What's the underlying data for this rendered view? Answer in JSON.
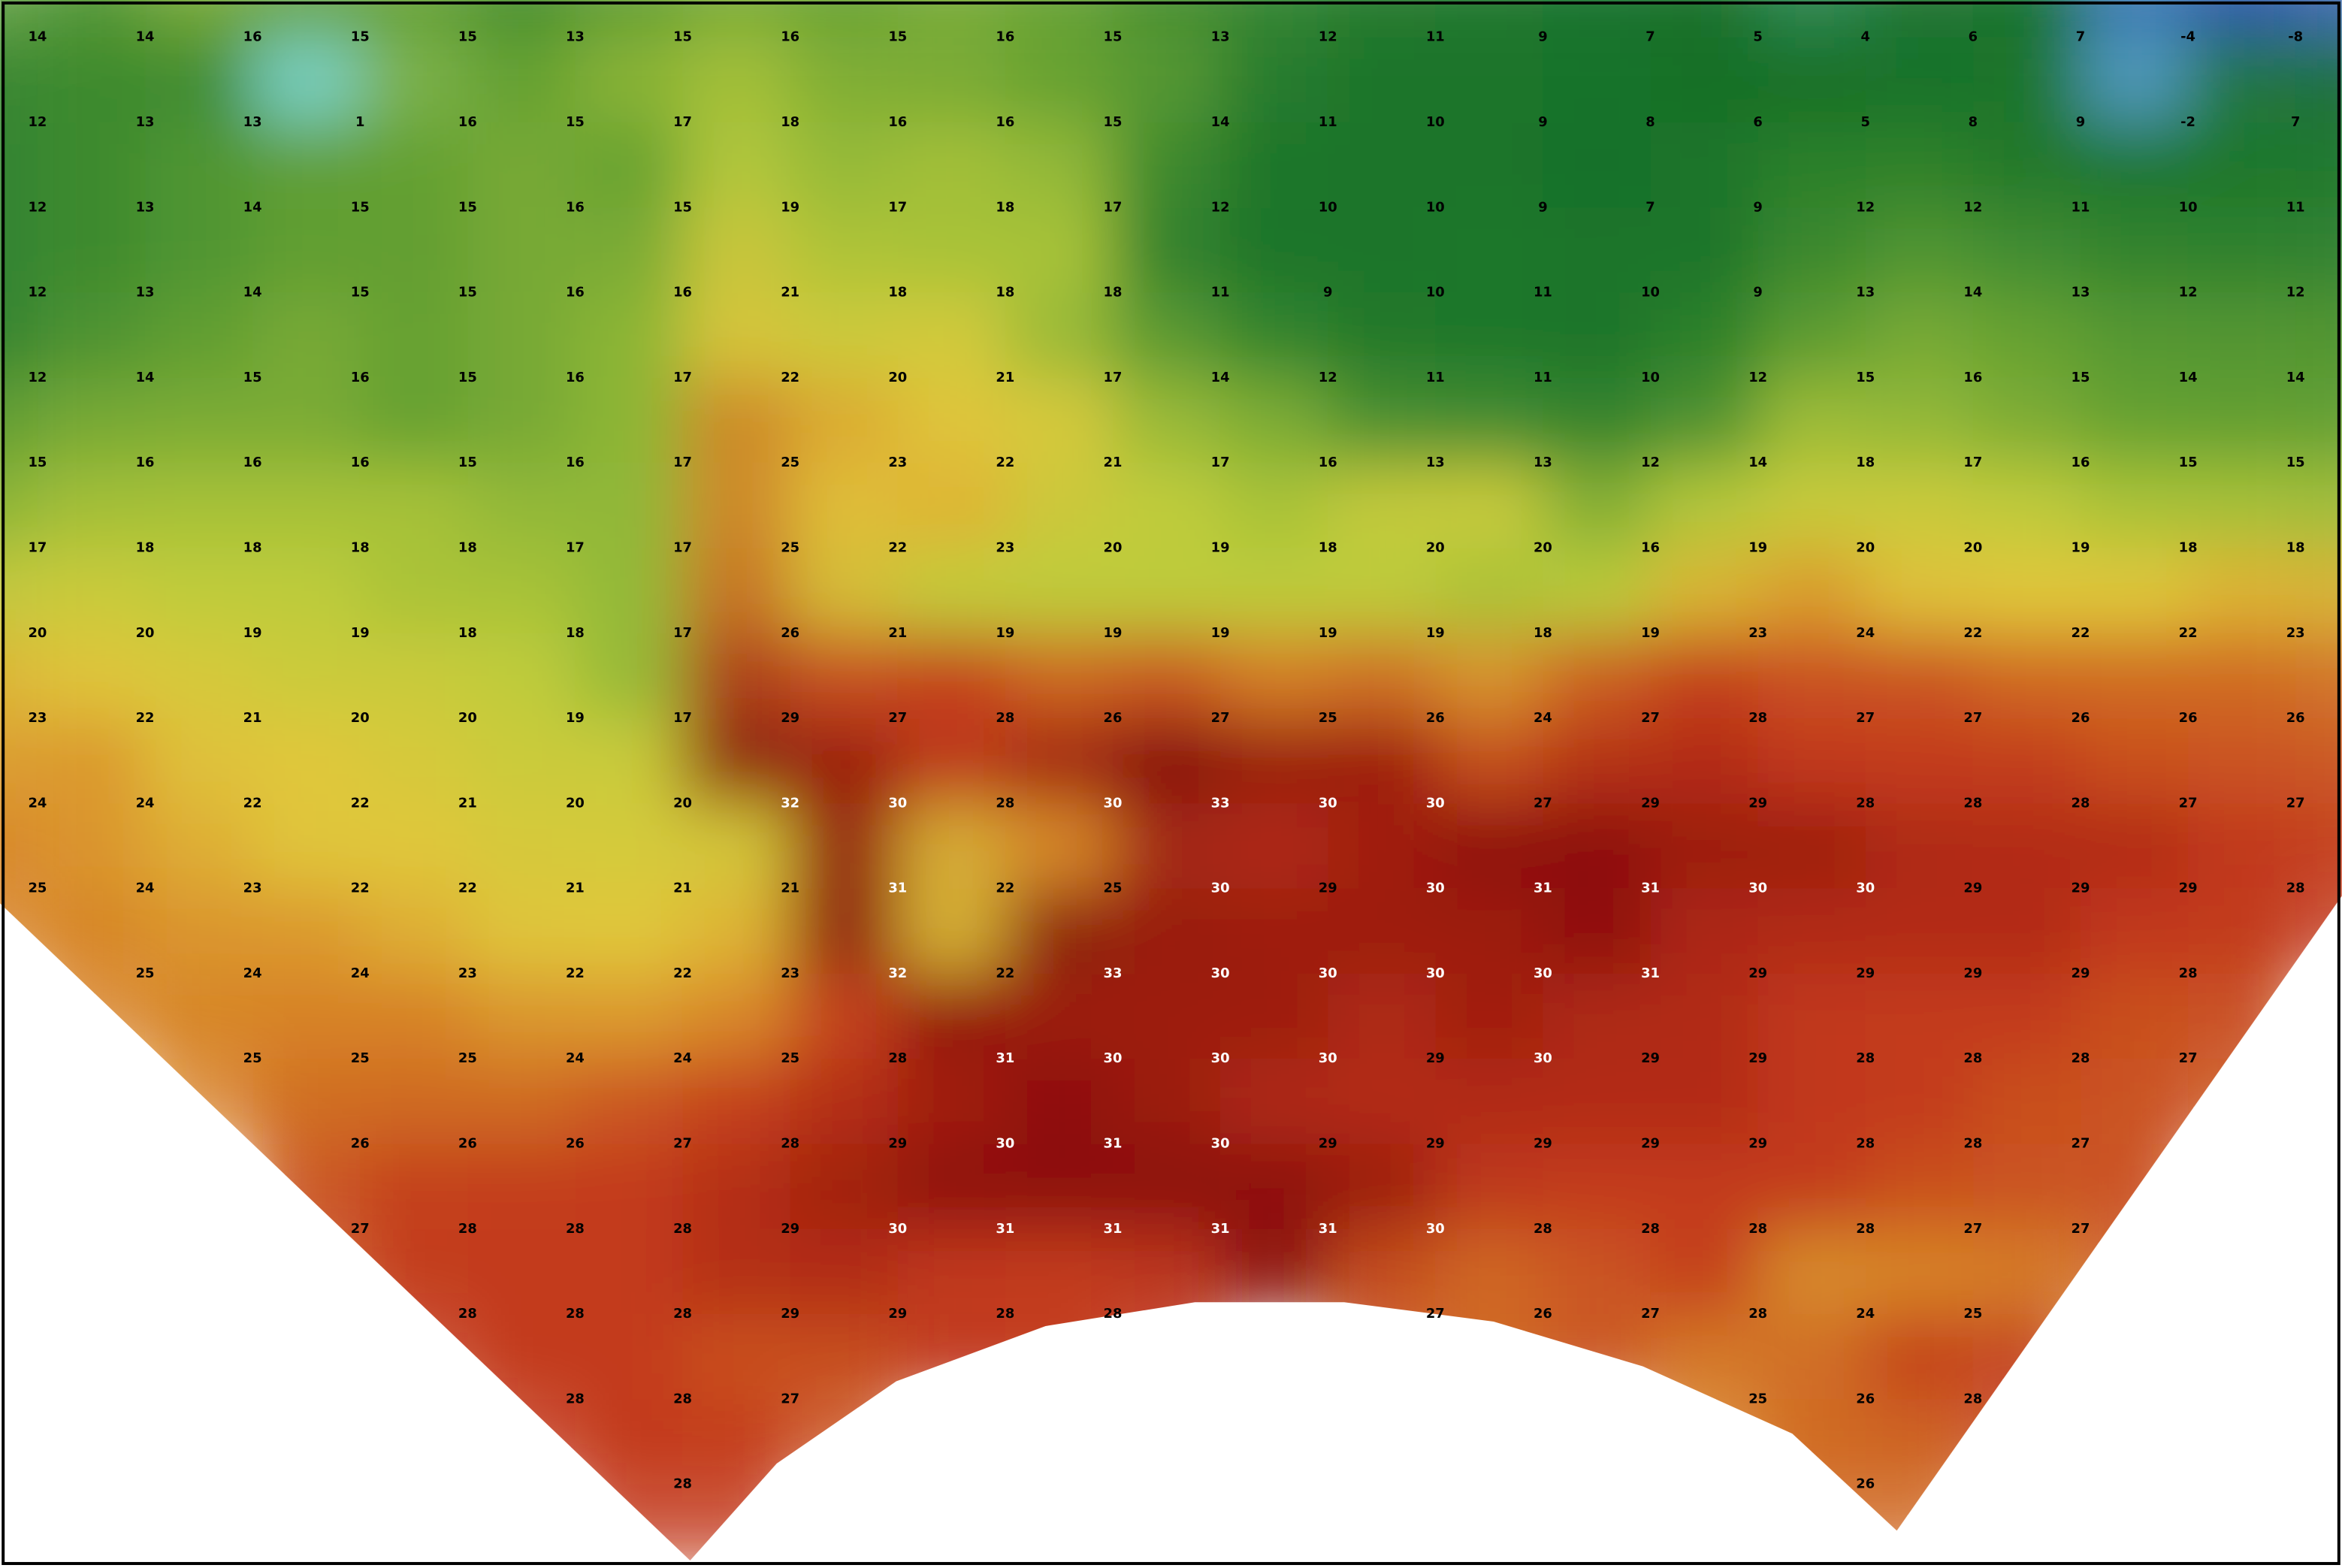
{
  "map": {
    "grid": [
      [
        14,
        14,
        16,
        15,
        15,
        13,
        15,
        16,
        15,
        16,
        15,
        13,
        12,
        11,
        9,
        7,
        5,
        4,
        6,
        7,
        -4,
        -8
      ],
      [
        12,
        13,
        13,
        1,
        16,
        15,
        17,
        18,
        16,
        16,
        15,
        14,
        11,
        10,
        9,
        8,
        6,
        5,
        8,
        9,
        -2,
        7
      ],
      [
        12,
        13,
        14,
        15,
        15,
        16,
        15,
        19,
        17,
        18,
        17,
        12,
        10,
        10,
        9,
        7,
        9,
        12,
        12,
        11,
        10,
        11
      ],
      [
        12,
        13,
        14,
        15,
        15,
        16,
        16,
        21,
        18,
        18,
        18,
        11,
        9,
        10,
        11,
        10,
        9,
        13,
        14,
        13,
        12,
        12
      ],
      [
        12,
        14,
        15,
        16,
        15,
        16,
        17,
        22,
        20,
        21,
        17,
        14,
        12,
        11,
        11,
        10,
        12,
        15,
        16,
        15,
        14,
        14
      ],
      [
        15,
        16,
        16,
        16,
        15,
        16,
        17,
        25,
        23,
        22,
        21,
        17,
        16,
        13,
        13,
        12,
        14,
        18,
        17,
        16,
        15,
        15
      ],
      [
        17,
        18,
        18,
        18,
        18,
        17,
        17,
        25,
        22,
        23,
        20,
        19,
        18,
        20,
        20,
        16,
        19,
        20,
        20,
        19,
        18,
        18
      ],
      [
        20,
        20,
        19,
        19,
        18,
        18,
        17,
        26,
        21,
        19,
        19,
        19,
        19,
        19,
        18,
        19,
        23,
        24,
        22,
        22,
        22,
        23
      ],
      [
        23,
        22,
        21,
        20,
        20,
        19,
        17,
        29,
        27,
        28,
        26,
        27,
        25,
        26,
        24,
        27,
        28,
        27,
        27,
        26,
        26,
        26
      ],
      [
        24,
        24,
        22,
        22,
        21,
        20,
        20,
        32,
        30,
        28,
        30,
        33,
        30,
        30,
        27,
        29,
        29,
        28,
        28,
        28,
        27,
        27
      ],
      [
        25,
        24,
        23,
        22,
        22,
        21,
        21,
        21,
        31,
        22,
        25,
        30,
        29,
        30,
        31,
        31,
        30,
        30,
        29,
        29,
        29,
        28
      ],
      [
        null,
        25,
        24,
        24,
        23,
        22,
        22,
        23,
        32,
        22,
        33,
        30,
        30,
        30,
        30,
        31,
        29,
        29,
        29,
        29,
        28,
        null
      ],
      [
        null,
        null,
        25,
        25,
        25,
        24,
        24,
        25,
        28,
        31,
        30,
        30,
        30,
        29,
        30,
        29,
        29,
        28,
        28,
        28,
        27,
        null
      ],
      [
        null,
        null,
        null,
        26,
        26,
        26,
        27,
        28,
        29,
        30,
        31,
        30,
        29,
        29,
        29,
        29,
        29,
        28,
        28,
        27,
        null,
        null
      ],
      [
        null,
        null,
        null,
        27,
        28,
        28,
        28,
        29,
        30,
        31,
        31,
        31,
        31,
        30,
        28,
        28,
        28,
        28,
        27,
        27,
        null,
        null
      ],
      [
        null,
        null,
        null,
        null,
        28,
        28,
        28,
        29,
        29,
        28,
        28,
        null,
        null,
        27,
        26,
        27,
        28,
        24,
        25,
        null,
        null,
        null
      ],
      [
        null,
        null,
        null,
        null,
        null,
        28,
        28,
        27,
        null,
        null,
        null,
        null,
        null,
        null,
        null,
        null,
        25,
        26,
        28,
        null,
        null,
        null
      ],
      [
        null,
        null,
        null,
        null,
        null,
        null,
        28,
        null,
        null,
        null,
        null,
        null,
        null,
        null,
        null,
        null,
        null,
        26,
        null,
        null,
        null,
        null
      ]
    ]
  }
}
